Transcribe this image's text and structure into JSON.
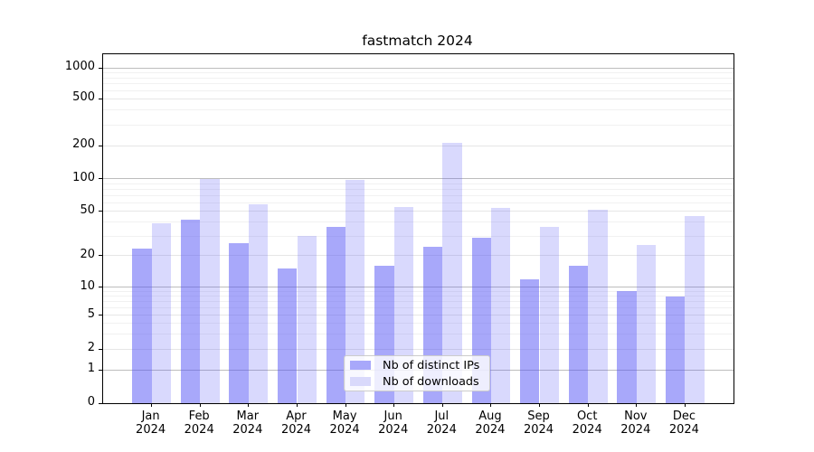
{
  "figure": {
    "background": "#ffffff"
  },
  "chart_data": {
    "type": "bar",
    "title": "fastmatch 2024",
    "categories": [
      "Jan 2024",
      "Feb 2024",
      "Mar 2024",
      "Apr 2024",
      "May 2024",
      "Jun 2024",
      "Jul 2024",
      "Aug 2024",
      "Sep 2024",
      "Oct 2024",
      "Nov 2024",
      "Dec 2024"
    ],
    "x_tick_line1": [
      "Jan",
      "Feb",
      "Mar",
      "Apr",
      "May",
      "Jun",
      "Jul",
      "Aug",
      "Sep",
      "Oct",
      "Nov",
      "Dec"
    ],
    "x_tick_line2": [
      "2024",
      "2024",
      "2024",
      "2024",
      "2024",
      "2024",
      "2024",
      "2024",
      "2024",
      "2024",
      "2024",
      "2024"
    ],
    "series": [
      {
        "name": "Nb of distinct IPs",
        "color": "#a8a8fa",
        "fill": "rgba(81,81,245,0.5)",
        "values": [
          23,
          42,
          26,
          15,
          36,
          16,
          24,
          29,
          12,
          16,
          9,
          8
        ]
      },
      {
        "name": "Nb of downloads",
        "color": "#d9d9fb",
        "fill": "rgba(81,81,245,0.22)",
        "values": [
          39,
          100,
          58,
          30,
          97,
          55,
          210,
          54,
          36,
          52,
          25,
          45
        ]
      }
    ],
    "xlabel": "",
    "ylabel": "",
    "yscale": "log-like with linear 0-1 segment",
    "y_ticks": [
      0,
      1,
      2,
      5,
      10,
      20,
      50,
      100,
      200,
      500,
      1000
    ],
    "y_tick_labels": [
      "0",
      "1",
      "2",
      "5",
      "10",
      "20",
      "50",
      "100",
      "200",
      "500",
      "1000"
    ],
    "ylim": [
      0,
      1330
    ],
    "grid": true,
    "legend_position": "lower center"
  }
}
